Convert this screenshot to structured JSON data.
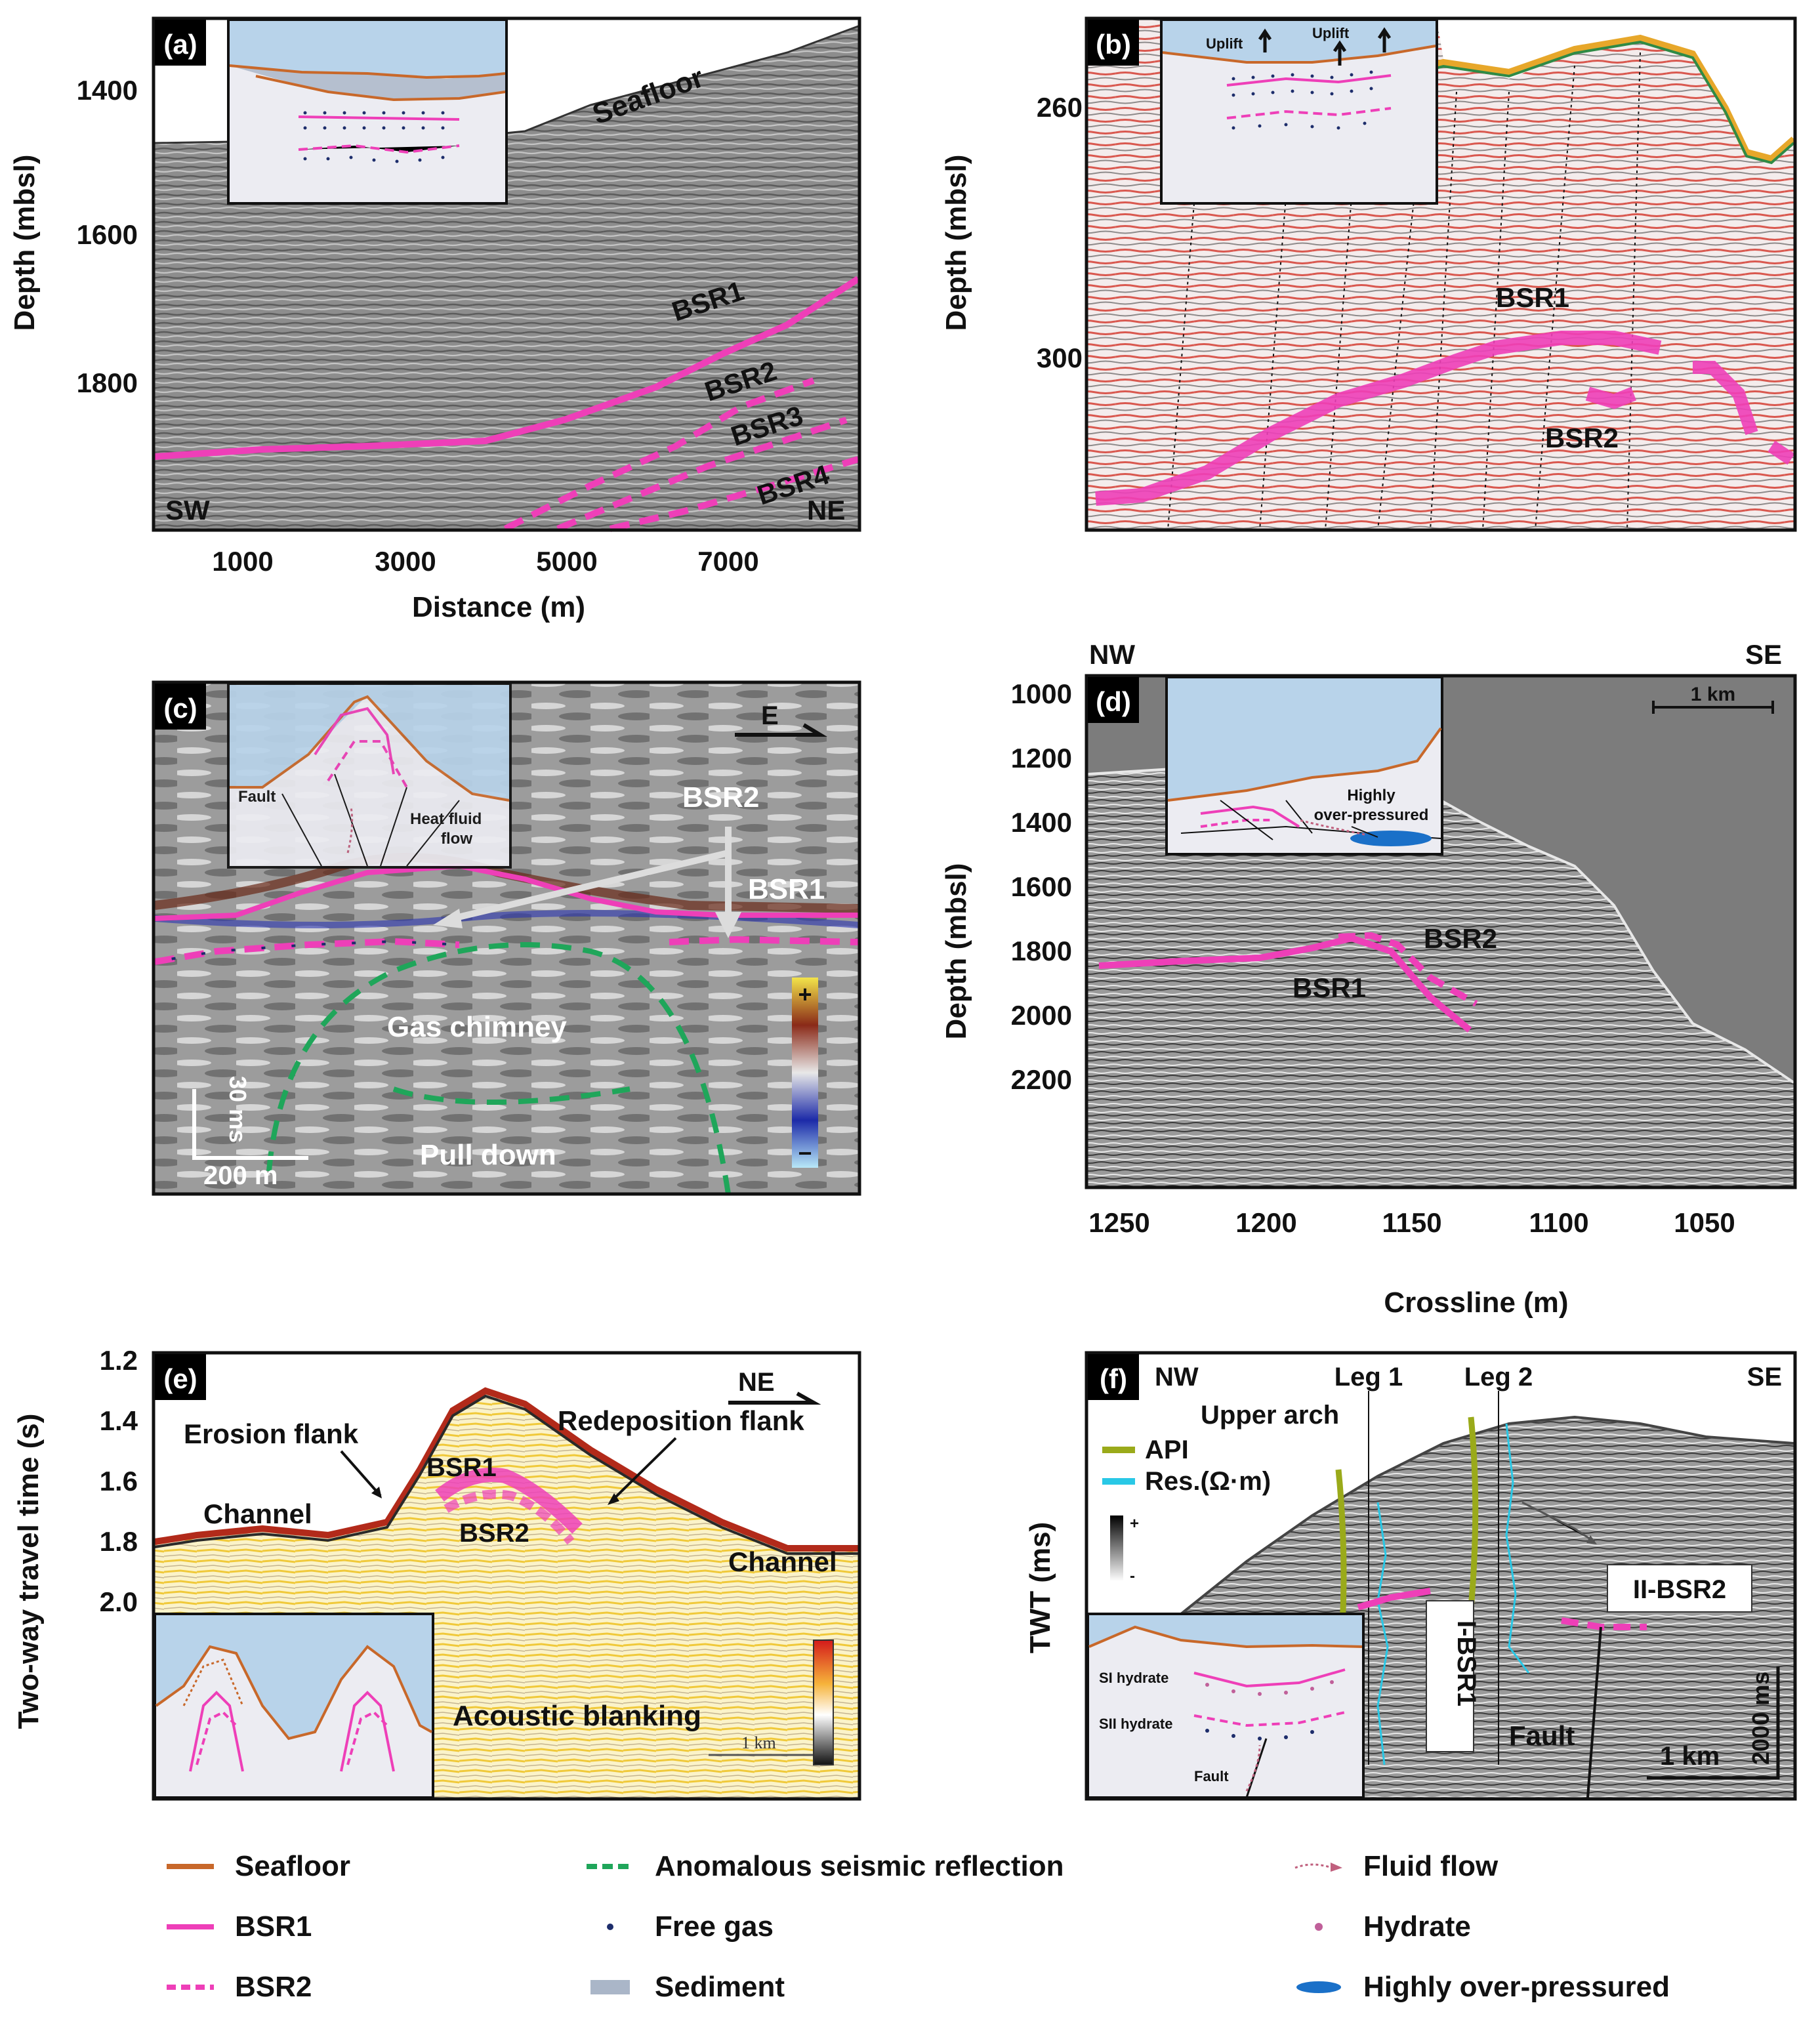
{
  "panels": {
    "a": {
      "tag": "(a)",
      "ylabel": "Depth (mbsl)",
      "xlabel": "Distance (m)",
      "yticks": [
        "1400",
        "1600",
        "1800"
      ],
      "xticks": [
        "1000",
        "3000",
        "5000",
        "7000"
      ],
      "labels": {
        "seafloor": "Seafloor",
        "bsr1": "BSR1",
        "bsr2": "BSR2",
        "bsr3": "BSR3",
        "bsr4": "BSR4",
        "sw": "SW",
        "ne": "NE"
      }
    },
    "b": {
      "tag": "(b)",
      "ylabel": "Depth (mbsl)",
      "yticks": [
        "260",
        "300"
      ],
      "labels": {
        "uplift1": "Uplift",
        "uplift2": "Uplift",
        "bsr1": "BSR1",
        "bsr2": "BSR2"
      }
    },
    "c": {
      "tag": "(c)",
      "labels": {
        "fault": "Fault",
        "heat1": "Heat fluid",
        "heat2": "flow",
        "bsr2": "BSR2",
        "bsr1": "BSR1",
        "chimney": "Gas chimney",
        "pulldown": "Pull down",
        "scale_v": "30 ms",
        "scale_h": "200 m",
        "dir": "E",
        "plus": "+",
        "minus": "−"
      }
    },
    "d": {
      "tag": "(d)",
      "ylabel": "Depth (mbsl)",
      "xlabel": "Crossline (m)",
      "yticks": [
        "1000",
        "1200",
        "1400",
        "1600",
        "1800",
        "2000",
        "2200"
      ],
      "xticks": [
        "1250",
        "1200",
        "1150",
        "1100",
        "1050"
      ],
      "labels": {
        "nw": "NW",
        "se": "SE",
        "scale": "1 km",
        "bsr1": "BSR1",
        "bsr2": "BSR2",
        "over1": "Highly",
        "over2": "over-pressured"
      }
    },
    "e": {
      "tag": "(e)",
      "ylabel": "Two-way travel time (s)",
      "yticks": [
        "1.2",
        "1.4",
        "1.6",
        "1.8",
        "2.0"
      ],
      "labels": {
        "erosion": "Erosion flank",
        "redep": "Redeposition flank",
        "channel1": "Channel",
        "channel2": "Channel",
        "bsr1": "BSR1",
        "bsr2": "BSR2",
        "blanking": "Acoustic blanking",
        "dir": "NE",
        "scale": "1 km"
      }
    },
    "f": {
      "tag": "(f)",
      "ylabel": "TWT (ms)",
      "labels": {
        "nw": "NW",
        "se": "SE",
        "leg1": "Leg 1",
        "leg2": "Leg 2",
        "arch": "Upper arch",
        "api": "API",
        "res": "Res.(Ω·m)",
        "ibsr1": "I-BSR1",
        "iibsr2": "II-BSR2",
        "fault": "Fault",
        "fault_inset": "Fault",
        "si": "SI hydrate",
        "sii": "SII hydrate",
        "scale_h": "1 km",
        "scale_v": "2000 ms",
        "plus": "+",
        "minus": "-"
      }
    }
  },
  "legend": [
    {
      "label": "Seafloor",
      "icon": "seafloor-line",
      "color": "#c8682a"
    },
    {
      "label": "Anomalous seismic reflection",
      "icon": "green-dashed-line",
      "color": "#1fa65a"
    },
    {
      "label": "Fluid flow",
      "icon": "fluid-flow-arrow",
      "color": "#c0607e"
    },
    {
      "label": "BSR1",
      "icon": "bsr1-line",
      "color": "#ee3fb8"
    },
    {
      "label": "Free gas",
      "icon": "free-gas-dot",
      "color": "#1d2d6b"
    },
    {
      "label": "Hydrate",
      "icon": "hydrate-dot",
      "color": "#c0609a"
    },
    {
      "label": "BSR2",
      "icon": "bsr2-dashed-line",
      "color": "#ee3fb8"
    },
    {
      "label": "Sediment",
      "icon": "sediment-box",
      "color": "#aab6c8"
    },
    {
      "label": "Highly over-pressured",
      "icon": "overpressure-ellipse",
      "color": "#1a70c8"
    }
  ],
  "colors": {
    "seafloor": "#c8682a",
    "bsr": "#ee3fb8",
    "water": "#b8d3ea",
    "green": "#1fa65a"
  }
}
